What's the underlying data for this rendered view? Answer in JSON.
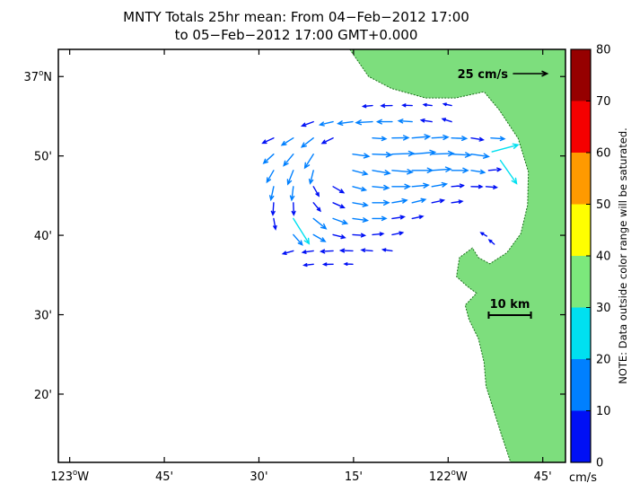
{
  "title": {
    "line1": "MNTY Totals 25hr mean: From 04−Feb−2012 17:00",
    "line2": "to 05−Feb−2012 17:00 GMT+0.000"
  },
  "chart_data": {
    "type": "scatter",
    "subtype": "vector_field_map",
    "title": "MNTY Totals 25hr mean: From 04−Feb−2012 17:00 to 05−Feb−2012 17:00 GMT+0.000",
    "axis": {
      "xlim": [
        -123.03,
        -121.69
      ],
      "ylim": [
        36.19,
        37.057
      ],
      "x_ticks": [
        {
          "value": -123.0,
          "label": "123°W"
        },
        {
          "value": -122.75,
          "label": "45'"
        },
        {
          "value": -122.5,
          "label": "30'"
        },
        {
          "value": -122.25,
          "label": "15'"
        },
        {
          "value": -122.0,
          "label": "122°W"
        },
        {
          "value": -121.75,
          "label": "45'"
        }
      ],
      "y_ticks": [
        {
          "value": 37.0,
          "label": "37°N"
        },
        {
          "value": 36.8333,
          "label": "50'"
        },
        {
          "value": 36.6667,
          "label": "40'"
        },
        {
          "value": 36.5,
          "label": "30'"
        },
        {
          "value": 36.3333,
          "label": "20'"
        }
      ],
      "grid": false
    },
    "land_color": "#7DDE7D",
    "coast_stroke_color": "#1A701A",
    "sea_color": "#FFFFFF",
    "coastline": [
      [
        -122.26,
        37.057
      ],
      [
        -122.21,
        37.0
      ],
      [
        -122.15,
        36.975
      ],
      [
        -122.06,
        36.955
      ],
      [
        -121.98,
        36.955
      ],
      [
        -121.905,
        36.968
      ],
      [
        -121.865,
        36.93
      ],
      [
        -121.815,
        36.87
      ],
      [
        -121.788,
        36.8
      ],
      [
        -121.79,
        36.73
      ],
      [
        -121.808,
        36.67
      ],
      [
        -121.845,
        36.63
      ],
      [
        -121.89,
        36.607
      ],
      [
        -121.92,
        36.62
      ],
      [
        -121.936,
        36.64
      ],
      [
        -121.97,
        36.62
      ],
      [
        -121.978,
        36.58
      ],
      [
        -121.95,
        36.56
      ],
      [
        -121.925,
        36.545
      ],
      [
        -121.955,
        36.52
      ],
      [
        -121.945,
        36.49
      ],
      [
        -121.92,
        36.45
      ],
      [
        -121.905,
        36.4
      ],
      [
        -121.9,
        36.35
      ],
      [
        -121.88,
        36.3
      ],
      [
        -121.86,
        36.25
      ],
      [
        -121.835,
        36.19
      ]
    ],
    "vectors": {
      "format": [
        "lon",
        "lat",
        "direction_deg_ccw_from_east",
        "speed_cm_s"
      ],
      "points": [
        [
          -122.2,
          36.939,
          185,
          7
        ],
        [
          -122.148,
          36.939,
          181,
          8
        ],
        [
          -122.095,
          36.939,
          178,
          7
        ],
        [
          -122.043,
          36.939,
          173,
          6
        ],
        [
          -121.991,
          36.939,
          168,
          6
        ],
        [
          -122.356,
          36.905,
          200,
          9
        ],
        [
          -122.304,
          36.905,
          193,
          10
        ],
        [
          -122.252,
          36.905,
          187,
          11
        ],
        [
          -122.2,
          36.905,
          183,
          12
        ],
        [
          -122.148,
          36.905,
          180,
          11
        ],
        [
          -122.095,
          36.905,
          176,
          10
        ],
        [
          -122.043,
          36.905,
          171,
          8
        ],
        [
          -121.991,
          36.905,
          162,
          7
        ],
        [
          -122.461,
          36.871,
          205,
          9
        ],
        [
          -122.409,
          36.871,
          212,
          10
        ],
        [
          -122.356,
          36.871,
          218,
          11
        ],
        [
          -122.304,
          36.871,
          206,
          9
        ],
        [
          -122.2,
          36.871,
          356,
          10
        ],
        [
          -122.148,
          36.871,
          1,
          12
        ],
        [
          -122.095,
          36.871,
          5,
          13
        ],
        [
          -122.043,
          36.871,
          3,
          12
        ],
        [
          -121.991,
          36.871,
          358,
          11
        ],
        [
          -121.939,
          36.871,
          351,
          9
        ],
        [
          -121.887,
          36.871,
          356,
          10
        ],
        [
          -122.461,
          36.837,
          222,
          10
        ],
        [
          -122.409,
          36.837,
          230,
          11
        ],
        [
          -122.356,
          36.837,
          238,
          12
        ],
        [
          -122.252,
          36.837,
          352,
          12
        ],
        [
          -122.2,
          36.837,
          358,
          14
        ],
        [
          -122.148,
          36.837,
          2,
          16
        ],
        [
          -122.095,
          36.837,
          5,
          17
        ],
        [
          -122.043,
          36.837,
          2,
          16
        ],
        [
          -121.991,
          36.837,
          357,
          14
        ],
        [
          -121.939,
          36.837,
          352,
          13
        ],
        [
          -121.884,
          36.842,
          15,
          20
        ],
        [
          -121.862,
          36.824,
          305,
          21
        ],
        [
          -122.461,
          36.803,
          240,
          10
        ],
        [
          -122.409,
          36.803,
          248,
          11
        ],
        [
          -122.356,
          36.803,
          256,
          10
        ],
        [
          -122.252,
          36.803,
          345,
          11
        ],
        [
          -122.2,
          36.803,
          350,
          13
        ],
        [
          -122.148,
          36.803,
          355,
          15
        ],
        [
          -122.095,
          36.803,
          0,
          15
        ],
        [
          -122.043,
          36.803,
          4,
          14
        ],
        [
          -121.991,
          36.803,
          0,
          12
        ],
        [
          -121.939,
          36.803,
          351,
          10
        ],
        [
          -121.893,
          36.803,
          5,
          9
        ],
        [
          -122.461,
          36.769,
          258,
          10
        ],
        [
          -122.409,
          36.769,
          263,
          10
        ],
        [
          -122.356,
          36.769,
          300,
          8
        ],
        [
          -122.304,
          36.769,
          330,
          9
        ],
        [
          -122.252,
          36.769,
          345,
          10
        ],
        [
          -122.2,
          36.769,
          355,
          12
        ],
        [
          -122.148,
          36.769,
          0,
          13
        ],
        [
          -122.095,
          36.769,
          5,
          12
        ],
        [
          -122.043,
          36.769,
          10,
          11
        ],
        [
          -121.991,
          36.769,
          5,
          9
        ],
        [
          -121.939,
          36.769,
          359,
          8
        ],
        [
          -121.9,
          36.769,
          355,
          8
        ],
        [
          -122.461,
          36.735,
          266,
          9
        ],
        [
          -122.409,
          36.735,
          272,
          9
        ],
        [
          -122.356,
          36.735,
          310,
          8
        ],
        [
          -122.304,
          36.735,
          336,
          9
        ],
        [
          -122.252,
          36.735,
          350,
          11
        ],
        [
          -122.2,
          36.735,
          0,
          12
        ],
        [
          -122.148,
          36.735,
          10,
          11
        ],
        [
          -122.095,
          36.735,
          14,
          10
        ],
        [
          -122.043,
          36.735,
          12,
          9
        ],
        [
          -121.991,
          36.735,
          8,
          8
        ],
        [
          -122.461,
          36.702,
          280,
          8
        ],
        [
          -122.409,
          36.702,
          302,
          22
        ],
        [
          -122.356,
          36.702,
          321,
          12
        ],
        [
          -122.304,
          36.702,
          340,
          11
        ],
        [
          -122.252,
          36.702,
          352,
          11
        ],
        [
          -122.2,
          36.702,
          0,
          10
        ],
        [
          -122.148,
          36.702,
          8,
          9
        ],
        [
          -122.095,
          36.702,
          12,
          8
        ],
        [
          -122.409,
          36.668,
          311,
          10
        ],
        [
          -122.356,
          36.668,
          330,
          10
        ],
        [
          -122.304,
          36.668,
          346,
          9
        ],
        [
          -122.252,
          36.668,
          356,
          9
        ],
        [
          -122.2,
          36.668,
          5,
          8
        ],
        [
          -122.148,
          36.668,
          11,
          8
        ],
        [
          -121.898,
          36.665,
          150,
          5
        ],
        [
          -121.878,
          36.648,
          140,
          5
        ],
        [
          -122.409,
          36.634,
          196,
          8
        ],
        [
          -122.356,
          36.634,
          188,
          8
        ],
        [
          -122.304,
          36.634,
          183,
          9
        ],
        [
          -122.252,
          36.634,
          178,
          9
        ],
        [
          -122.2,
          36.634,
          175,
          8
        ],
        [
          -122.148,
          36.634,
          172,
          7
        ],
        [
          -122.356,
          36.606,
          186,
          7
        ],
        [
          -122.304,
          36.606,
          181,
          7
        ],
        [
          -122.252,
          36.606,
          178,
          6
        ]
      ]
    },
    "speed_colorbar": {
      "units": "cm/s",
      "ticks": [
        0,
        10,
        20,
        30,
        40,
        50,
        60,
        70,
        80
      ],
      "bands": [
        {
          "range": [
            0,
            10
          ],
          "color": "#0010F5"
        },
        {
          "range": [
            10,
            20
          ],
          "color": "#0080FF"
        },
        {
          "range": [
            20,
            30
          ],
          "color": "#00E0F0"
        },
        {
          "range": [
            30,
            40
          ],
          "color": "#7CE87C"
        },
        {
          "range": [
            40,
            50
          ],
          "color": "#FFFF00"
        },
        {
          "range": [
            50,
            60
          ],
          "color": "#FF9A00"
        },
        {
          "range": [
            60,
            70
          ],
          "color": "#F50000"
        },
        {
          "range": [
            70,
            80
          ],
          "color": "#960000"
        }
      ],
      "note": "NOTE: Data outside color range will be saturated."
    },
    "scale_vector": {
      "label": "25 cm/s",
      "speed": 25
    },
    "scale_bar": {
      "label": "10 km",
      "km": 10
    }
  }
}
